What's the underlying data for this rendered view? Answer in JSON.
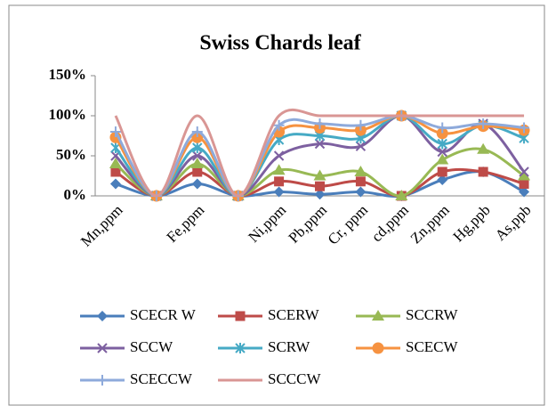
{
  "chart_data": {
    "type": "line",
    "title": "Swiss Chards leaf",
    "categories": [
      "Mn,ppm",
      null,
      "Fe,ppm",
      null,
      "Ni,ppm",
      "Pb,ppm",
      "Cr, ppm",
      "cd,ppm",
      "Zn,ppm",
      "Hg,ppb",
      "As,ppb"
    ],
    "ylim": [
      0,
      150
    ],
    "yticks": [
      {
        "value": 0,
        "label": "0%"
      },
      {
        "value": 50,
        "label": "50%"
      },
      {
        "value": 100,
        "label": "100%"
      },
      {
        "value": 150,
        "label": "150%"
      }
    ],
    "smooth": true,
    "series": [
      {
        "name": "SCECR W",
        "color": "#4a7ebb",
        "marker": "diamond",
        "values": [
          15,
          0,
          15,
          0,
          5,
          2,
          5,
          0,
          20,
          30,
          5
        ]
      },
      {
        "name": "SCERW",
        "color": "#be4b48",
        "marker": "square",
        "values": [
          30,
          0,
          30,
          0,
          18,
          12,
          18,
          0,
          30,
          30,
          15
        ]
      },
      {
        "name": "SCCRW",
        "color": "#98b954",
        "marker": "triangle",
        "values": [
          40,
          0,
          40,
          0,
          32,
          25,
          30,
          0,
          45,
          58,
          25
        ]
      },
      {
        "name": "SCCW",
        "color": "#7d60a0",
        "marker": "x",
        "values": [
          50,
          0,
          50,
          0,
          50,
          65,
          62,
          100,
          55,
          90,
          30
        ]
      },
      {
        "name": "SCRW",
        "color": "#46aac5",
        "marker": "star",
        "values": [
          60,
          0,
          60,
          0,
          70,
          75,
          72,
          100,
          65,
          88,
          72
        ]
      },
      {
        "name": "SCECW",
        "color": "#f69240",
        "marker": "circle",
        "values": [
          73,
          0,
          73,
          0,
          80,
          85,
          82,
          100,
          78,
          87,
          82
        ]
      },
      {
        "name": "SCECCW",
        "color": "#8eaadb",
        "marker": "plus",
        "values": [
          80,
          0,
          80,
          0,
          88,
          90,
          88,
          100,
          85,
          90,
          85
        ]
      },
      {
        "name": "SCCCW",
        "color": "#d99694",
        "marker": "none",
        "values": [
          100,
          0,
          100,
          0,
          100,
          100,
          100,
          100,
          100,
          100,
          100
        ]
      }
    ]
  }
}
